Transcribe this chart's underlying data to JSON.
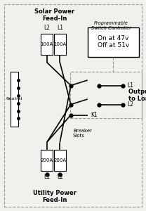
{
  "bg_color": "#f2f0ec",
  "fig_width": 2.08,
  "fig_height": 3.0,
  "dpi": 100,
  "solar_label": "Solar Power\nFeed-In",
  "utility_label": "Utility Power\nFeed-In",
  "output_label": "Output Power\nto Loads",
  "neutral_label": "Neutral",
  "breaker_label": "Breaker\nSlots",
  "controller_label": "Programmable\nSwitch Controller",
  "switch_box_text": "On at 47v\nOff at 51v",
  "solar_breaker_L2": "100A",
  "solar_breaker_L1": "100A",
  "utility_breaker_L1": "200A",
  "utility_breaker_L2": "200A",
  "l1_solar": "L1",
  "l2_solar": "L2",
  "l1_utility": "L1",
  "l2_utility": "L2",
  "l1_output": "L1",
  "l2_output": "L2",
  "k1_label": "K1",
  "lw": 1.2,
  "dot_ms": 3.5
}
